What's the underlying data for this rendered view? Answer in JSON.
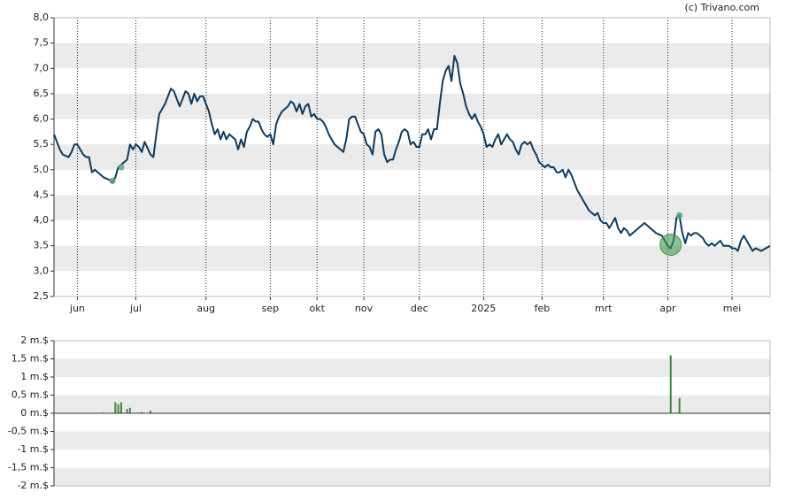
{
  "credit": "(c) Trivano.com",
  "chart_data": [
    {
      "type": "line",
      "xlim": [
        0,
        245
      ],
      "xticks": [
        {
          "value": 8,
          "label": "jun"
        },
        {
          "value": 28,
          "label": "jul"
        },
        {
          "value": 52,
          "label": "aug"
        },
        {
          "value": 74,
          "label": "sep"
        },
        {
          "value": 90,
          "label": "okt"
        },
        {
          "value": 106,
          "label": "nov"
        },
        {
          "value": 125,
          "label": "dec"
        },
        {
          "value": 147,
          "label": "2025"
        },
        {
          "value": 167,
          "label": "feb"
        },
        {
          "value": 188,
          "label": "mrt"
        },
        {
          "value": 210,
          "label": "apr"
        },
        {
          "value": 232,
          "label": "mei"
        }
      ],
      "ylim": [
        2.5,
        8
      ],
      "yticks": [
        {
          "value": 2.5,
          "label": "2,5"
        },
        {
          "value": 3,
          "label": "3,0"
        },
        {
          "value": 3.5,
          "label": "3,5"
        },
        {
          "value": 4,
          "label": "4,0"
        },
        {
          "value": 4.5,
          "label": "4,5"
        },
        {
          "value": 5,
          "label": "5,0"
        },
        {
          "value": 5.5,
          "label": "5,5"
        },
        {
          "value": 6,
          "label": "6,0"
        },
        {
          "value": 6.5,
          "label": "6,5"
        },
        {
          "value": 7,
          "label": "7,0"
        },
        {
          "value": 7.5,
          "label": "7,5"
        },
        {
          "value": 8,
          "label": "8,0"
        }
      ],
      "grid": true,
      "color": "#0e3a5e",
      "x": [
        0,
        2,
        3,
        5,
        6,
        7,
        8,
        10,
        11,
        12,
        13,
        14,
        15,
        17,
        19,
        20,
        21,
        22,
        23,
        25,
        26,
        27,
        28,
        29,
        30,
        31,
        33,
        34,
        35,
        36,
        38,
        40,
        41,
        42,
        43,
        44,
        45,
        46,
        47,
        48,
        49,
        50,
        51,
        52,
        53,
        54,
        55,
        56,
        57,
        58,
        59,
        60,
        61,
        62,
        63,
        64,
        65,
        66,
        67,
        68,
        69,
        70,
        71,
        72,
        73,
        74,
        75,
        76,
        77,
        78,
        79,
        80,
        81,
        82,
        83,
        84,
        85,
        86,
        87,
        88,
        89,
        90,
        91,
        92,
        93,
        94,
        95,
        96,
        97,
        98,
        99,
        100,
        101,
        102,
        103,
        104,
        105,
        106,
        107,
        108,
        109,
        110,
        111,
        112,
        113,
        114,
        115,
        116,
        117,
        118,
        119,
        120,
        121,
        122,
        123,
        124,
        125,
        126,
        127,
        128,
        129,
        130,
        131,
        132,
        133,
        134,
        135,
        136,
        137,
        138,
        139,
        140,
        141,
        142,
        143,
        144,
        145,
        146,
        147,
        148,
        149,
        150,
        151,
        152,
        153,
        154,
        155,
        156,
        157,
        158,
        159,
        160,
        161,
        162,
        163,
        164,
        165,
        166,
        167,
        168,
        169,
        170,
        171,
        172,
        173,
        174,
        175,
        176,
        177,
        178,
        179,
        180,
        181,
        182,
        183,
        184,
        185,
        186,
        187,
        188,
        189,
        190,
        191,
        192,
        193,
        194,
        195,
        196,
        197,
        198,
        200,
        202,
        204,
        206,
        208,
        210,
        211,
        212,
        213,
        214,
        215,
        216,
        217,
        218,
        219,
        220,
        221,
        222,
        223,
        224,
        225,
        226,
        227,
        228,
        229,
        230,
        231,
        232,
        233,
        234,
        235,
        236,
        237,
        238,
        239,
        240,
        242,
        245
      ],
      "values": [
        5.7,
        5.4,
        5.3,
        5.25,
        5.35,
        5.5,
        5.5,
        5.3,
        5.25,
        5.25,
        4.95,
        5.0,
        4.95,
        4.85,
        4.8,
        4.75,
        4.85,
        5.05,
        5.1,
        5.2,
        5.5,
        5.4,
        5.5,
        5.45,
        5.35,
        5.55,
        5.3,
        5.25,
        5.7,
        6.1,
        6.3,
        6.6,
        6.55,
        6.4,
        6.25,
        6.4,
        6.55,
        6.5,
        6.3,
        6.5,
        6.35,
        6.45,
        6.45,
        6.3,
        6.15,
        5.9,
        5.7,
        5.8,
        5.6,
        5.75,
        5.6,
        5.7,
        5.65,
        5.6,
        5.4,
        5.6,
        5.45,
        5.75,
        5.85,
        6.0,
        5.95,
        5.95,
        5.8,
        5.7,
        5.65,
        5.7,
        5.5,
        5.9,
        6.05,
        6.15,
        6.2,
        6.25,
        6.35,
        6.3,
        6.15,
        6.3,
        6.1,
        6.25,
        6.3,
        6.05,
        6.1,
        6.0,
        6.0,
        5.95,
        5.85,
        5.7,
        5.6,
        5.5,
        5.45,
        5.4,
        5.35,
        5.6,
        6.0,
        6.05,
        6.05,
        5.9,
        5.75,
        5.7,
        5.5,
        5.45,
        5.3,
        5.75,
        5.8,
        5.7,
        5.3,
        5.15,
        5.2,
        5.2,
        5.4,
        5.55,
        5.75,
        5.8,
        5.75,
        5.5,
        5.55,
        5.45,
        5.45,
        5.7,
        5.7,
        5.8,
        5.6,
        5.8,
        5.8,
        6.3,
        6.75,
        6.95,
        7.05,
        6.75,
        7.25,
        7.1,
        6.7,
        6.5,
        6.25,
        6.1,
        6.0,
        6.1,
        5.95,
        5.85,
        5.7,
        5.45,
        5.5,
        5.45,
        5.6,
        5.7,
        5.5,
        5.6,
        5.7,
        5.6,
        5.55,
        5.4,
        5.3,
        5.5,
        5.55,
        5.5,
        5.55,
        5.4,
        5.3,
        5.15,
        5.1,
        5.05,
        5.1,
        5.05,
        5.05,
        4.95,
        4.95,
        5.0,
        4.85,
        5.0,
        4.9,
        4.75,
        4.6,
        4.5,
        4.4,
        4.3,
        4.2,
        4.15,
        4.1,
        4.15,
        4.0,
        3.95,
        3.95,
        3.85,
        3.95,
        4.05,
        3.85,
        3.75,
        3.85,
        3.8,
        3.7,
        3.75,
        3.85,
        3.95,
        3.85,
        3.75,
        3.7,
        3.5,
        3.45,
        3.6,
        4.05,
        4.1,
        3.75,
        3.55,
        3.75,
        3.7,
        3.75,
        3.75,
        3.7,
        3.65,
        3.55,
        3.5,
        3.55,
        3.5,
        3.55,
        3.6,
        3.5,
        3.5,
        3.5,
        3.45,
        3.45,
        3.4,
        3.6,
        3.7,
        3.6,
        3.5,
        3.4,
        3.45,
        3.4,
        3.5
      ],
      "markers": {
        "x": [
          20,
          23,
          214
        ],
        "values": [
          4.78,
          5.05,
          4.1
        ],
        "color": "#5aa58a"
      },
      "large_markers": {
        "x": [
          211
        ],
        "values": [
          3.52
        ],
        "color": "#3f9a4f"
      }
    },
    {
      "type": "bar",
      "xlim": [
        0,
        245
      ],
      "ylim": [
        -2,
        2
      ],
      "yticks": [
        {
          "value": -2,
          "label": "-2 m.$"
        },
        {
          "value": -1.5,
          "label": "-1,5 m.$"
        },
        {
          "value": -1,
          "label": "-1 m.$"
        },
        {
          "value": -0.5,
          "label": "-0,5 m.$"
        },
        {
          "value": 0,
          "label": "0 m.$"
        },
        {
          "value": 0.5,
          "label": "0,5 m.$"
        },
        {
          "value": 1,
          "label": "1 m.$"
        },
        {
          "value": 1.5,
          "label": "1,5 m.$"
        },
        {
          "value": 2,
          "label": "2 m.$"
        }
      ],
      "grid": true,
      "color": "#3a8a3a",
      "x": [
        17,
        21,
        22,
        23,
        25,
        26,
        30,
        33,
        211,
        214
      ],
      "values": [
        0.02,
        0.3,
        0.25,
        0.3,
        0.12,
        0.15,
        0.03,
        0.07,
        1.6,
        0.42
      ]
    }
  ]
}
